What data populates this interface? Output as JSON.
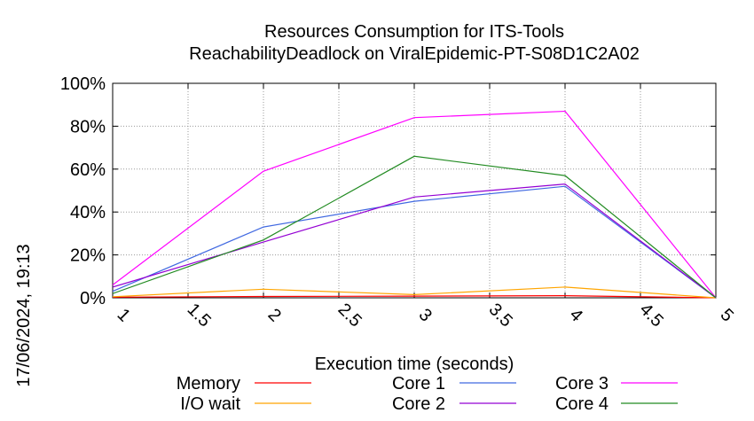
{
  "chart_data": {
    "type": "line",
    "title": "Resources Consumption for ITS-Tools",
    "subtitle": "ReachabilityDeadlock on ViralEpidemic-PT-S08D1C2A02",
    "xlabel": "Execution time (seconds)",
    "ylabel": "",
    "xlim": [
      1,
      5
    ],
    "ylim": [
      0,
      100
    ],
    "x_ticks": [
      "1",
      "1.5",
      "2",
      "2.5",
      "3",
      "3.5",
      "4",
      "4.5",
      "5"
    ],
    "y_ticks": [
      "0%",
      "20%",
      "40%",
      "60%",
      "80%",
      "100%"
    ],
    "grid": true,
    "legend_position": "bottom",
    "timestamp": "17/06/2024, 19:13",
    "x": [
      1,
      2,
      3,
      4,
      5
    ],
    "series": [
      {
        "name": "Memory",
        "color": "#ff0000",
        "values": [
          0.3,
          0.6,
          0.8,
          1.0,
          0
        ]
      },
      {
        "name": "I/O wait",
        "color": "#ffa500",
        "values": [
          0.5,
          4,
          1.5,
          5,
          0
        ]
      },
      {
        "name": "Core 1",
        "color": "#4169e1",
        "values": [
          3,
          33,
          45,
          52,
          0
        ]
      },
      {
        "name": "Core 2",
        "color": "#9400d3",
        "values": [
          5,
          26,
          47,
          53,
          0
        ]
      },
      {
        "name": "Core 3",
        "color": "#ff00ff",
        "values": [
          6,
          59,
          84,
          87,
          0
        ]
      },
      {
        "name": "Core 4",
        "color": "#228b22",
        "values": [
          2,
          27,
          66,
          57,
          0
        ]
      }
    ]
  }
}
